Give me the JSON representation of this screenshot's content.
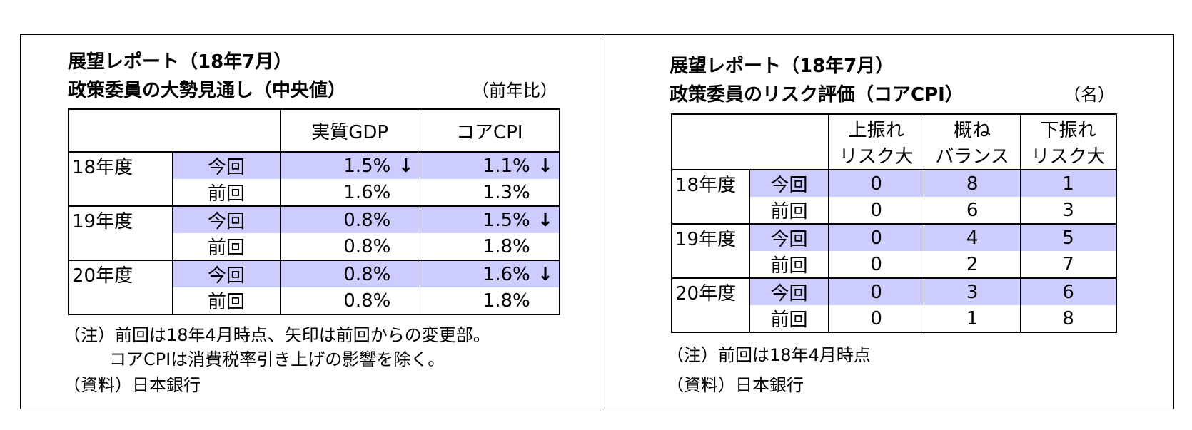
{
  "left": {
    "title_line1": "展望レポート（18年7月）",
    "title_line2": "政策委員の大勢見通し（中央値）",
    "unit": "（前年比）",
    "headers": [
      "",
      "実質GDP",
      "コアCPI"
    ],
    "rows": [
      {
        "year": "18年度",
        "label": "今回",
        "gdp": "1.5%",
        "gdp_arrow": "↓",
        "cpi": "1.1%",
        "cpi_arrow": "↓"
      },
      {
        "year": "",
        "label": "前回",
        "gdp": "1.6%",
        "gdp_arrow": "",
        "cpi": "1.3%",
        "cpi_arrow": ""
      },
      {
        "year": "19年度",
        "label": "今回",
        "gdp": "0.8%",
        "gdp_arrow": "",
        "cpi": "1.5%",
        "cpi_arrow": "↓"
      },
      {
        "year": "",
        "label": "前回",
        "gdp": "0.8%",
        "gdp_arrow": "",
        "cpi": "1.8%",
        "cpi_arrow": ""
      },
      {
        "year": "20年度",
        "label": "今回",
        "gdp": "0.8%",
        "gdp_arrow": "",
        "cpi": "1.6%",
        "cpi_arrow": "↓"
      },
      {
        "year": "",
        "label": "前回",
        "gdp": "0.8%",
        "gdp_arrow": "",
        "cpi": "1.8%",
        "cpi_arrow": ""
      }
    ],
    "note1": "（注）前回は18年4月時点、矢印は前回からの変更部。",
    "note2": "コアCPIは消費税率引き上げの影響を除く。",
    "source": "（資料）日本銀行"
  },
  "right": {
    "title_line1": "展望レポート（18年7月）",
    "title_line2": "政策委員のリスク評価（コアCPI）",
    "unit": "（名）",
    "headers": [
      {
        "l1": "上振れ",
        "l2": "リスク大"
      },
      {
        "l1": "概ね",
        "l2": "バランス"
      },
      {
        "l1": "下振れ",
        "l2": "リスク大"
      }
    ],
    "rows": [
      {
        "year": "18年度",
        "label": "今回",
        "v1": "0",
        "v2": "8",
        "v3": "1"
      },
      {
        "year": "",
        "label": "前回",
        "v1": "0",
        "v2": "6",
        "v3": "3"
      },
      {
        "year": "19年度",
        "label": "今回",
        "v1": "0",
        "v2": "4",
        "v3": "5"
      },
      {
        "year": "",
        "label": "前回",
        "v1": "0",
        "v2": "2",
        "v3": "7"
      },
      {
        "year": "20年度",
        "label": "今回",
        "v1": "0",
        "v2": "3",
        "v3": "6"
      },
      {
        "year": "",
        "label": "前回",
        "v1": "0",
        "v2": "1",
        "v3": "8"
      }
    ],
    "note1": "（注）前回は18年4月時点",
    "source": "（資料）日本銀行"
  }
}
